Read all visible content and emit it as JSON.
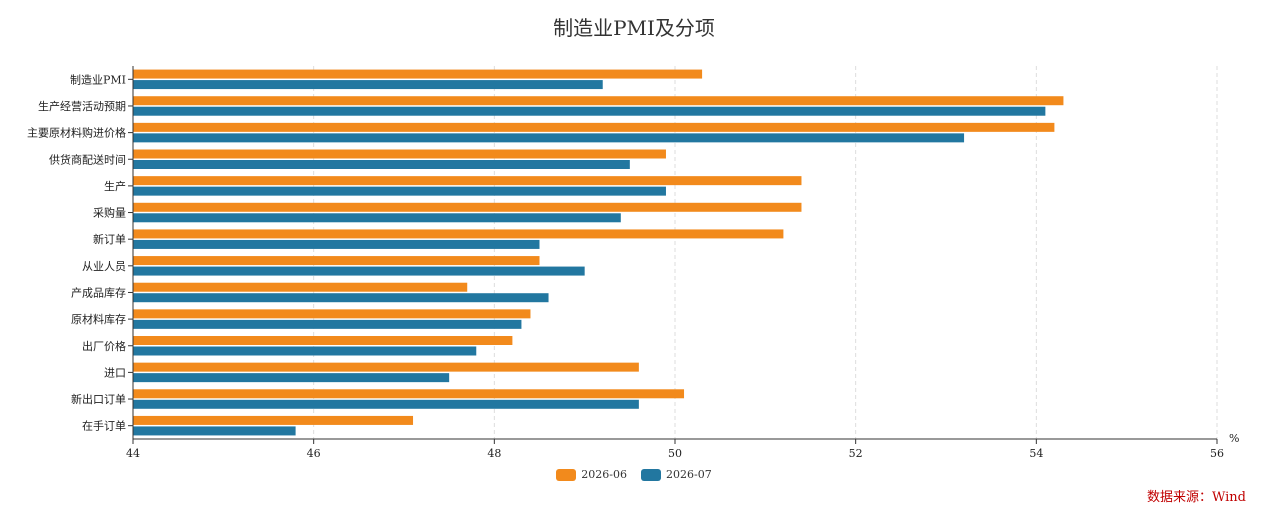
{
  "chart_data": {
    "type": "bar",
    "orientation": "horizontal",
    "title": "制造业PMI及分项",
    "unit": "%",
    "categories": [
      "制造业PMI",
      "生产经营活动预期",
      "主要原材料购进价格",
      "供货商配送时间",
      "生产",
      "采购量",
      "新订单",
      "从业人员",
      "产成品库存",
      "原材料库存",
      "出厂价格",
      "进口",
      "新出口订单",
      "在手订单"
    ],
    "series": [
      {
        "name": "2026-06",
        "color": "#F28A1C",
        "values": [
          50.3,
          54.3,
          54.2,
          49.9,
          51.4,
          51.4,
          51.2,
          48.5,
          47.7,
          48.4,
          48.2,
          49.6,
          50.1,
          47.1
        ]
      },
      {
        "name": "2026-07",
        "color": "#2277A0",
        "values": [
          49.2,
          54.1,
          53.2,
          49.5,
          49.9,
          49.4,
          48.5,
          49.0,
          48.6,
          48.3,
          47.8,
          47.5,
          49.6,
          45.8
        ]
      }
    ],
    "xlim": [
      44,
      56
    ],
    "xticks": [
      44,
      46,
      48,
      50,
      52,
      54,
      56
    ],
    "grid": true,
    "legend_position": "bottom"
  },
  "source_note": "数据来源：Wind"
}
